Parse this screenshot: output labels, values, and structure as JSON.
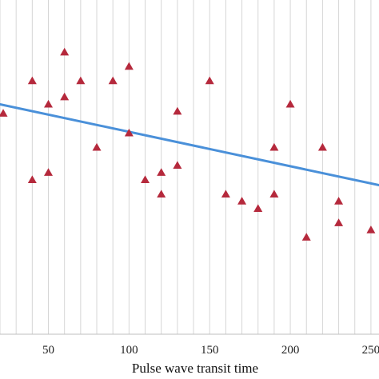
{
  "chart_data": {
    "type": "scatter",
    "xlabel": "Pulse wave transit time",
    "ylabel": "",
    "title": "",
    "xlim": [
      20,
      255
    ],
    "ylim": [
      0,
      100
    ],
    "x_ticks": [
      50,
      100,
      150,
      200,
      250
    ],
    "x_tick_labels": [
      "50",
      "100",
      "150",
      "200",
      "250"
    ],
    "grid": "vertical",
    "grid_step": 10,
    "marker": "triangle",
    "colors": {
      "points": "#b5293c",
      "trendline": "#4a90d9",
      "grid": "#d6d6d6",
      "axis": "#bfbfbf"
    },
    "series": [
      {
        "points": [
          {
            "x": 22,
            "y": 66.1
          },
          {
            "x": 40,
            "y": 75.8
          },
          {
            "x": 40,
            "y": 46.2
          },
          {
            "x": 50,
            "y": 68.8
          },
          {
            "x": 50,
            "y": 48.4
          },
          {
            "x": 60,
            "y": 84.4
          },
          {
            "x": 60,
            "y": 71.0
          },
          {
            "x": 70,
            "y": 75.8
          },
          {
            "x": 80,
            "y": 55.9
          },
          {
            "x": 90,
            "y": 75.8
          },
          {
            "x": 100,
            "y": 80.1
          },
          {
            "x": 100,
            "y": 60.2
          },
          {
            "x": 110,
            "y": 46.2
          },
          {
            "x": 120,
            "y": 48.4
          },
          {
            "x": 120,
            "y": 41.9
          },
          {
            "x": 130,
            "y": 66.7
          },
          {
            "x": 130,
            "y": 50.5
          },
          {
            "x": 150,
            "y": 75.8
          },
          {
            "x": 160,
            "y": 41.9
          },
          {
            "x": 170,
            "y": 39.8
          },
          {
            "x": 180,
            "y": 37.6
          },
          {
            "x": 190,
            "y": 41.9
          },
          {
            "x": 190,
            "y": 55.9
          },
          {
            "x": 200,
            "y": 68.8
          },
          {
            "x": 210,
            "y": 29.0
          },
          {
            "x": 220,
            "y": 55.9
          },
          {
            "x": 230,
            "y": 39.8
          },
          {
            "x": 230,
            "y": 33.3
          },
          {
            "x": 250,
            "y": 31.2
          }
        ]
      }
    ],
    "trendline": {
      "x": [
        20,
        255
      ],
      "y": [
        68.8,
        44.6
      ]
    }
  }
}
